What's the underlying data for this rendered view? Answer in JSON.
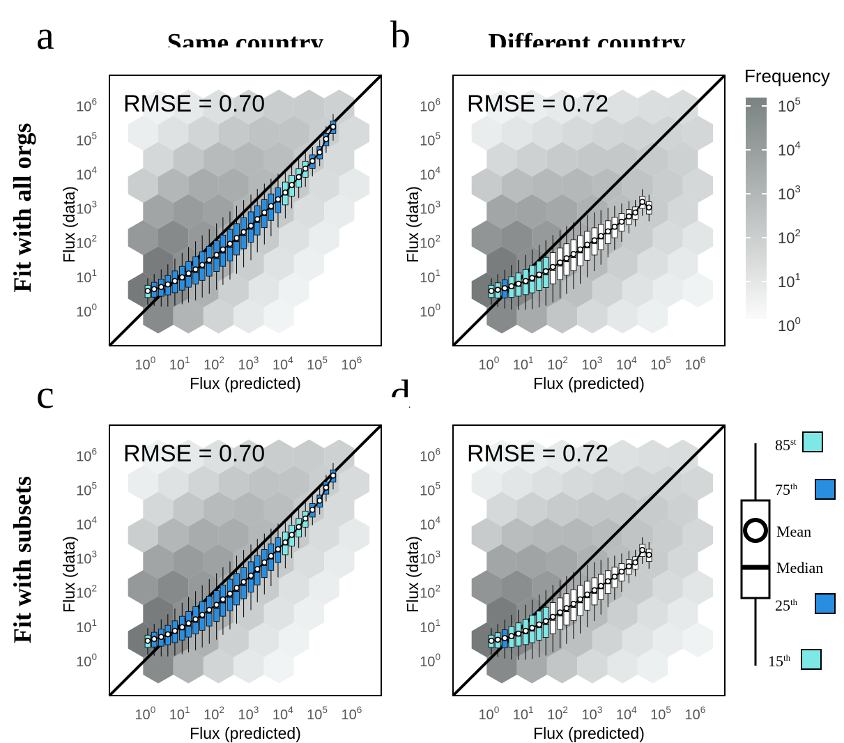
{
  "panel_letters": [
    "a",
    "b",
    "c",
    "d"
  ],
  "column_titles": [
    "Same country",
    "Different country"
  ],
  "row_titles": [
    "Fit with all orgs",
    "Fit with subsets"
  ],
  "colorbar": {
    "title": "Frequency",
    "tick_labels": [
      "10^5",
      "10^4",
      "10^3",
      "10^2",
      "10^1",
      "10^0"
    ],
    "color_high": "#7a8282",
    "color_low": "#fbfbfb"
  },
  "legend": {
    "labels": {
      "p85": "85",
      "p85_sup": "st",
      "p75": "75",
      "p75_sup": "th",
      "mean": "Mean",
      "median": "Median",
      "p25": "25",
      "p25_sup": "th",
      "p15": "15",
      "p15_sup": "th"
    },
    "colors": {
      "cyan": "#7ee8e6",
      "blue": "#2a8ee0"
    }
  },
  "axis_tick_labels": [
    "10^0",
    "10^1",
    "10^2",
    "10^3",
    "10^4",
    "10^5",
    "10^6"
  ],
  "chart_data": [
    {
      "type": "scatter",
      "panel": "a",
      "xlabel": "Flux (predicted)",
      "ylabel": "Flux (data)",
      "annotation": "RMSE = 0.70",
      "xscale": "log",
      "yscale": "log",
      "xlim": [
        0.1,
        8000000
      ],
      "ylim": [
        0.1,
        8000000
      ],
      "diagonal": "y = x",
      "means_x": [
        1.3,
        2,
        3.2,
        5,
        8,
        13,
        20,
        32,
        50,
        80,
        130,
        200,
        320,
        500,
        800,
        1300,
        2000,
        3200,
        5000,
        8000,
        13000,
        20000,
        32000,
        50000,
        80000,
        130000,
        200000,
        320000
      ],
      "means_y": [
        4,
        4.5,
        5.2,
        6.2,
        7.8,
        10,
        13,
        17,
        23,
        32,
        45,
        65,
        95,
        140,
        210,
        320,
        500,
        780,
        1200,
        1900,
        3000,
        5000,
        8500,
        15000,
        25000,
        45000,
        110000,
        250000
      ]
    },
    {
      "type": "scatter",
      "panel": "b",
      "xlabel": "Flux (predicted)",
      "ylabel": "Flux (data)",
      "annotation": "RMSE = 0.72",
      "xscale": "log",
      "yscale": "log",
      "xlim": [
        0.1,
        8000000
      ],
      "ylim": [
        0.1,
        8000000
      ],
      "diagonal": "y = x",
      "means_x": [
        1.3,
        2,
        3.2,
        5,
        8,
        13,
        20,
        32,
        50,
        80,
        130,
        200,
        320,
        500,
        800,
        1300,
        2000,
        3200,
        5000,
        8000,
        13000,
        20000,
        32000,
        50000
      ],
      "means_y": [
        4,
        4.3,
        4.8,
        5.5,
        6.5,
        7.8,
        9.5,
        12,
        15,
        20,
        27,
        36,
        48,
        65,
        90,
        120,
        160,
        220,
        300,
        420,
        600,
        780,
        1600,
        1100
      ]
    },
    {
      "type": "scatter",
      "panel": "c",
      "xlabel": "Flux (predicted)",
      "ylabel": "Flux (data)",
      "annotation": "RMSE = 0.70",
      "xscale": "log",
      "yscale": "log",
      "xlim": [
        0.1,
        8000000
      ],
      "ylim": [
        0.1,
        8000000
      ],
      "diagonal": "y = x",
      "means_x": [
        1.3,
        2,
        3.2,
        5,
        8,
        13,
        20,
        32,
        50,
        80,
        130,
        200,
        320,
        500,
        800,
        1300,
        2000,
        3200,
        5000,
        8000,
        13000,
        20000,
        32000,
        50000,
        80000,
        130000,
        200000,
        320000
      ],
      "means_y": [
        4,
        4.5,
        5.2,
        6.2,
        7.8,
        10,
        13,
        17,
        23,
        32,
        45,
        65,
        95,
        140,
        210,
        320,
        500,
        780,
        1200,
        1900,
        3000,
        5000,
        8500,
        15000,
        27000,
        50000,
        120000,
        270000
      ]
    },
    {
      "type": "scatter",
      "panel": "d",
      "xlabel": "Flux (predicted)",
      "ylabel": "Flux (data)",
      "annotation": "RMSE = 0.72",
      "xscale": "log",
      "yscale": "log",
      "xlim": [
        0.1,
        8000000
      ],
      "ylim": [
        0.1,
        8000000
      ],
      "diagonal": "y = x",
      "means_x": [
        1.3,
        2,
        3.2,
        5,
        8,
        13,
        20,
        32,
        50,
        80,
        130,
        200,
        320,
        500,
        800,
        1300,
        2000,
        3200,
        5000,
        8000,
        13000,
        20000,
        32000,
        50000
      ],
      "means_y": [
        4,
        4.3,
        4.8,
        5.5,
        6.5,
        7.8,
        9.5,
        12,
        15,
        20,
        27,
        36,
        48,
        65,
        90,
        120,
        160,
        220,
        300,
        420,
        600,
        780,
        1800,
        1300
      ]
    }
  ]
}
